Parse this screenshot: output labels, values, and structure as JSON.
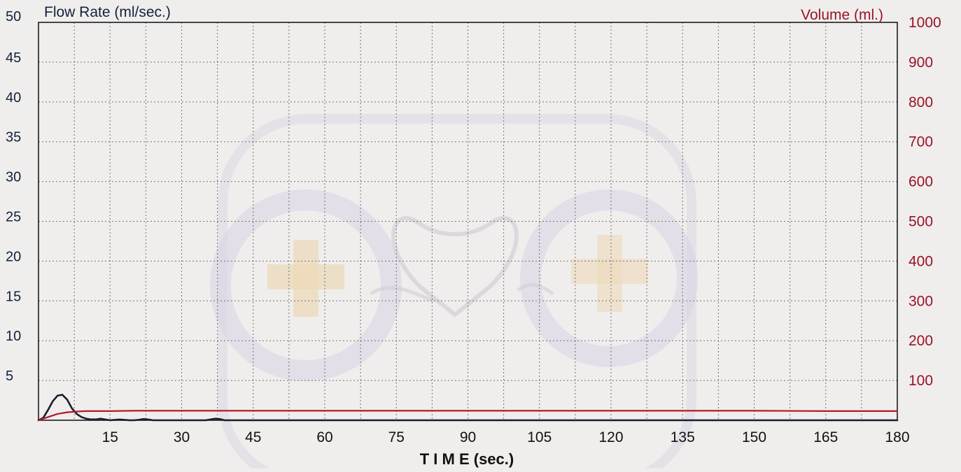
{
  "colors": {
    "flow": "#1a1d2e",
    "volume": "#b3192b",
    "left_axis_text": "#14213d",
    "right_axis_text": "#9b1227",
    "grid": "#4a4a4a",
    "watermark": "#d7cfe3",
    "watermark_plus": "#ecd8b8"
  },
  "chart_data": {
    "type": "line",
    "x_axis": {
      "label": "T I M E (sec.)",
      "range": [
        0,
        180
      ],
      "ticks": [
        15,
        30,
        45,
        60,
        75,
        90,
        105,
        120,
        135,
        150,
        165,
        180
      ],
      "minor_step": 7.5
    },
    "y_axis_left": {
      "label": "Flow Rate (ml/sec.)",
      "range": [
        0,
        50
      ],
      "ticks": [
        5,
        10,
        15,
        20,
        25,
        30,
        35,
        40,
        45,
        50
      ],
      "grid_step": 5
    },
    "y_axis_right": {
      "label": "Volume (ml.)",
      "range": [
        0,
        1000
      ],
      "ticks": [
        100,
        200,
        300,
        400,
        500,
        600,
        700,
        800,
        900,
        1000
      ]
    },
    "grid": true,
    "series": [
      {
        "axis": "left",
        "points": [
          [
            0,
            0
          ],
          [
            1,
            0.3
          ],
          [
            2,
            1.3
          ],
          [
            3,
            2.4
          ],
          [
            4,
            3.1
          ],
          [
            5,
            3.2
          ],
          [
            6,
            2.6
          ],
          [
            7,
            1.5
          ],
          [
            8,
            0.8
          ],
          [
            9,
            0.4
          ],
          [
            10,
            0.2
          ],
          [
            11,
            0.1
          ],
          [
            12,
            0.1
          ],
          [
            13,
            0.2
          ],
          [
            14,
            0.1
          ],
          [
            15,
            0
          ],
          [
            16,
            0.05
          ],
          [
            17,
            0.1
          ],
          [
            18,
            0.05
          ],
          [
            19,
            0
          ],
          [
            20,
            0
          ],
          [
            21,
            0.05
          ],
          [
            22,
            0.15
          ],
          [
            23,
            0.1
          ],
          [
            24,
            0
          ],
          [
            30,
            0
          ],
          [
            35,
            0
          ],
          [
            36,
            0.1
          ],
          [
            37,
            0.2
          ],
          [
            38,
            0.15
          ],
          [
            39,
            0
          ],
          [
            45,
            0
          ],
          [
            60,
            0
          ],
          [
            75,
            0
          ],
          [
            90,
            0
          ],
          [
            105,
            0
          ],
          [
            120,
            0
          ],
          [
            135,
            0
          ],
          [
            150,
            0
          ],
          [
            165,
            0
          ],
          [
            180,
            0
          ]
        ]
      },
      {
        "axis": "right",
        "points": [
          [
            0,
            0
          ],
          [
            2,
            8
          ],
          [
            4,
            16
          ],
          [
            6,
            20
          ],
          [
            8,
            22
          ],
          [
            10,
            23
          ],
          [
            15,
            23
          ],
          [
            20,
            24
          ],
          [
            30,
            24
          ],
          [
            45,
            24
          ],
          [
            60,
            24
          ],
          [
            75,
            24
          ],
          [
            90,
            24
          ],
          [
            105,
            24
          ],
          [
            120,
            24
          ],
          [
            135,
            24
          ],
          [
            150,
            24
          ],
          [
            165,
            23
          ],
          [
            180,
            23
          ]
        ]
      }
    ]
  }
}
